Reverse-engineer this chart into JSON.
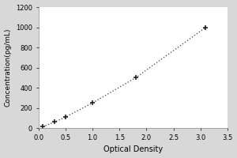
{
  "x_data": [
    0.077,
    0.3,
    0.5,
    1.0,
    1.8,
    3.1
  ],
  "y_data": [
    15,
    62,
    110,
    250,
    500,
    1000
  ],
  "xlabel": "Optical Density",
  "ylabel": "Concentration(pg/mL)",
  "xlim": [
    0,
    3.5
  ],
  "ylim": [
    0,
    1200
  ],
  "xticks": [
    0,
    0.5,
    1.0,
    1.5,
    2.0,
    2.5,
    3.0,
    3.5
  ],
  "yticks": [
    0,
    200,
    400,
    600,
    800,
    1000,
    1200
  ],
  "line_color": "#555555",
  "marker_color": "#222222",
  "background_color": "#d8d8d8",
  "plot_bg_color": "#ffffff",
  "xlabel_fontsize": 7,
  "ylabel_fontsize": 6.5,
  "tick_fontsize": 6
}
